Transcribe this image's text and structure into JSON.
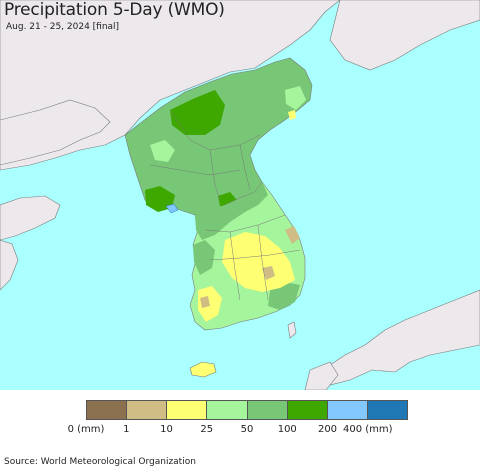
{
  "header": {
    "title": "Precipitation 5-Day (WMO)",
    "subtitle": "Aug. 21 - 25, 2024 [final]"
  },
  "colors": {
    "sea": "#aaffff",
    "foreign_land": "#ece8ec",
    "boundary": "#7a7a7a"
  },
  "legend": {
    "swatches": [
      {
        "color": "#8c7150"
      },
      {
        "color": "#cfbd85"
      },
      {
        "color": "#ffff73"
      },
      {
        "color": "#a5f59c"
      },
      {
        "color": "#77c776"
      },
      {
        "color": "#3ea800"
      },
      {
        "color": "#82c8ff"
      },
      {
        "color": "#1f78b4"
      }
    ],
    "ticks": [
      "0 (mm)",
      "1",
      "10",
      "25",
      "50",
      "100",
      "200",
      "400 (mm)"
    ]
  },
  "footer": {
    "source": "Source: World Meteorological Organization"
  }
}
